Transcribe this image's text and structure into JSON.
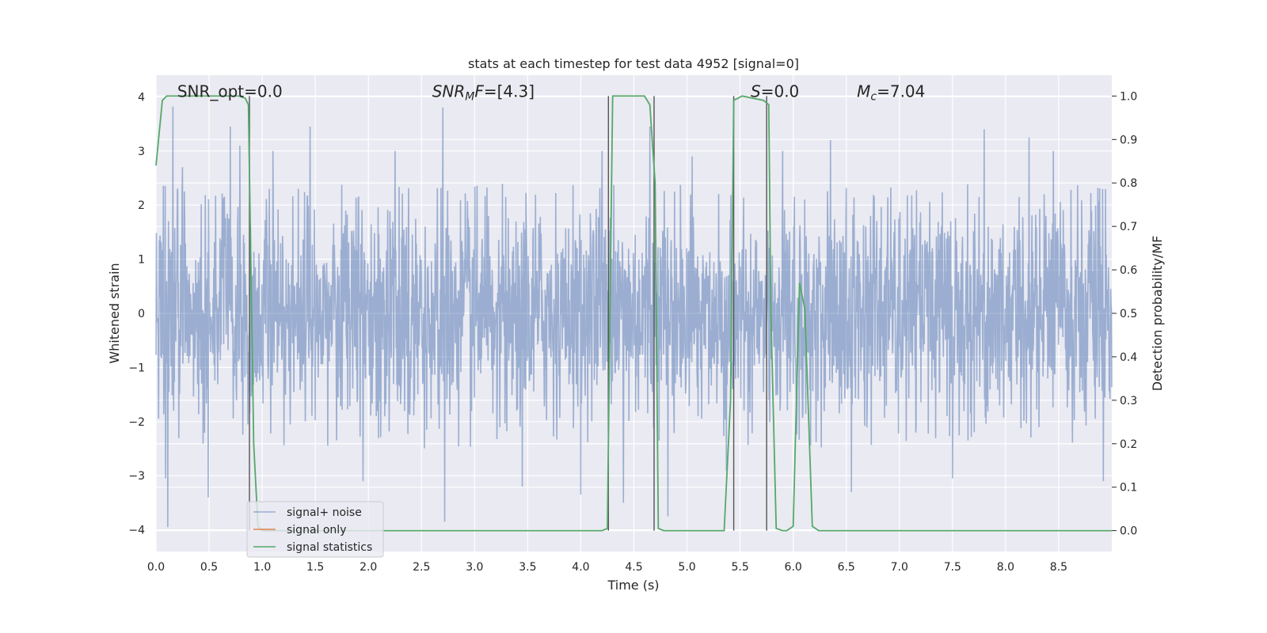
{
  "chart_data": {
    "type": "line",
    "title": "stats at each timestep for test data 4952 [signal=0]",
    "xlabel": "Time (s)",
    "ylabel": "Whitened strain",
    "y2label": "Detection probability/MF",
    "xlim": [
      0.0,
      9.0
    ],
    "ylim": [
      -4.4,
      4.4
    ],
    "y2lim": [
      -0.048,
      1.048
    ],
    "xticks": [
      0.0,
      0.5,
      1.0,
      1.5,
      2.0,
      2.5,
      3.0,
      3.5,
      4.0,
      4.5,
      5.0,
      5.5,
      6.0,
      6.5,
      7.0,
      7.5,
      8.0,
      8.5
    ],
    "xtick_labels": [
      "0.0",
      "0.5",
      "1.0",
      "1.5",
      "2.0",
      "2.5",
      "3.0",
      "3.5",
      "4.0",
      "4.5",
      "5.0",
      "5.5",
      "6.0",
      "6.5",
      "7.0",
      "7.5",
      "8.0",
      "8.5"
    ],
    "yticks": [
      -4,
      -3,
      -2,
      -1,
      0,
      1,
      2,
      3,
      4
    ],
    "ytick_labels": [
      "−4",
      "−3",
      "−2",
      "−1",
      "0",
      "1",
      "2",
      "3",
      "4"
    ],
    "y2ticks": [
      0.0,
      0.1,
      0.2,
      0.3,
      0.4,
      0.5,
      0.6,
      0.7,
      0.8,
      0.9,
      1.0
    ],
    "y2tick_labels": [
      "0.0",
      "0.1",
      "0.2",
      "0.3",
      "0.4",
      "0.5",
      "0.6",
      "0.7",
      "0.8",
      "0.9",
      "1.0"
    ],
    "grid": true,
    "legend_position": "bottom-left",
    "annotations": [
      {
        "text": "SNR_opt=0.0",
        "x": 0.2,
        "y": 4.1,
        "style": "normal"
      },
      {
        "text": "SNR_MF=[4.3]",
        "x": 2.6,
        "y": 4.1,
        "style": "mf"
      },
      {
        "text": "S=0.0",
        "x": 5.6,
        "y": 4.1,
        "style": "S"
      },
      {
        "text": "M_c=7.04",
        "x": 6.6,
        "y": 4.1,
        "style": "Mc"
      }
    ],
    "vertical_lines_x": [
      0.88,
      4.26,
      4.69,
      5.44,
      5.75
    ],
    "series": [
      {
        "name": "signal+ noise",
        "color": "#4c72b0",
        "axis": "left",
        "style": "noise",
        "x_range": [
          0.0,
          9.0
        ],
        "typical_amplitude": 1.6,
        "peak_values": [
          {
            "x": 0.09,
            "y": -3.05
          },
          {
            "x": 0.11,
            "y": -3.95
          },
          {
            "x": 0.16,
            "y": 3.82
          },
          {
            "x": 0.25,
            "y": 2.7
          },
          {
            "x": 0.49,
            "y": -3.4
          },
          {
            "x": 0.7,
            "y": 3.45
          },
          {
            "x": 0.79,
            "y": 3.1
          },
          {
            "x": 1.1,
            "y": 3.0
          },
          {
            "x": 1.45,
            "y": 3.45
          },
          {
            "x": 1.95,
            "y": -3.1
          },
          {
            "x": 2.25,
            "y": 3.0
          },
          {
            "x": 2.7,
            "y": 3.8
          },
          {
            "x": 2.72,
            "y": -3.85
          },
          {
            "x": 3.45,
            "y": -3.2
          },
          {
            "x": 4.0,
            "y": -3.35
          },
          {
            "x": 4.2,
            "y": 3.0
          },
          {
            "x": 4.4,
            "y": -3.5
          },
          {
            "x": 4.65,
            "y": 3.45
          },
          {
            "x": 4.82,
            "y": -3.75
          },
          {
            "x": 5.05,
            "y": 2.9
          },
          {
            "x": 5.37,
            "y": -2.9
          },
          {
            "x": 5.9,
            "y": 3.0
          },
          {
            "x": 6.35,
            "y": 3.2
          },
          {
            "x": 6.55,
            "y": -3.3
          },
          {
            "x": 7.5,
            "y": -3.05
          },
          {
            "x": 7.8,
            "y": 3.4
          },
          {
            "x": 8.22,
            "y": 3.25
          },
          {
            "x": 8.45,
            "y": 3.0
          },
          {
            "x": 8.92,
            "y": -3.1
          }
        ]
      },
      {
        "name": "signal only",
        "color": "#dd8452",
        "axis": "left",
        "x": [
          0.0,
          9.0
        ],
        "y": [
          0.0,
          0.0
        ]
      },
      {
        "name": "signal statistics",
        "color": "#55a868",
        "axis": "right",
        "x": [
          0.0,
          0.06,
          0.1,
          0.78,
          0.84,
          0.87,
          0.92,
          0.96,
          1.0,
          4.2,
          4.25,
          4.3,
          4.35,
          4.6,
          4.65,
          4.7,
          4.73,
          4.78,
          5.35,
          5.41,
          5.44,
          5.52,
          5.72,
          5.77,
          5.79,
          5.84,
          5.9,
          5.94,
          6.0,
          6.02,
          6.06,
          6.11,
          6.18,
          6.24,
          9.0
        ],
        "y": [
          0.84,
          0.99,
          1.0,
          1.0,
          0.995,
          0.98,
          0.2,
          0.01,
          0.0,
          0.0,
          0.005,
          1.0,
          1.0,
          1.0,
          0.98,
          0.8,
          0.005,
          0.0,
          0.0,
          0.3,
          0.99,
          1.0,
          0.99,
          0.98,
          0.5,
          0.005,
          0.0,
          0.0,
          0.01,
          0.2,
          0.57,
          0.51,
          0.01,
          0.0,
          0.0
        ]
      }
    ]
  }
}
